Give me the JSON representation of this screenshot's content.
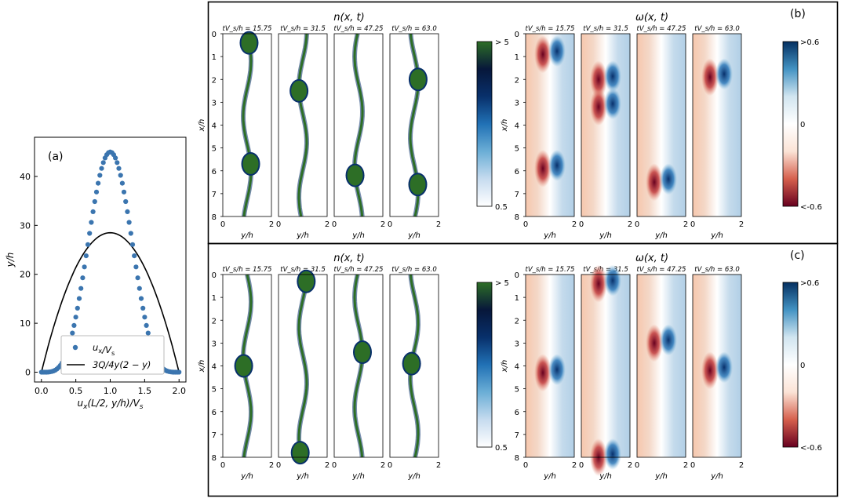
{
  "chart_data": [
    {
      "id": "a",
      "type": "scatter",
      "panel_label": "(a)",
      "xlabel": "u_x(L/2, y/h)/V_s",
      "ylabel": "y/h",
      "xlim": [
        -0.1,
        2.1
      ],
      "ylim": [
        -2,
        48
      ],
      "xticks": [
        "0.0",
        "0.5",
        "1.0",
        "1.5",
        "2.0"
      ],
      "xtick_values": [
        0,
        0.5,
        1,
        1.5,
        2
      ],
      "yticks": [
        "0",
        "10",
        "20",
        "30",
        "40"
      ],
      "ytick_values": [
        0,
        10,
        20,
        30,
        40
      ],
      "legend": [
        "u_x/V_s",
        "3Q/4y(2 − y)"
      ],
      "legend_position": "lower-center",
      "series": [
        {
          "name": "u_x/V_s",
          "kind": "points",
          "color": "#3b75af",
          "x_start": 0,
          "x_end": 2,
          "count": 81,
          "peak": 45,
          "shape": "sin4"
        },
        {
          "name": "3Q/4y(2 − y)",
          "kind": "line",
          "color": "#000000",
          "x_start": 0,
          "x_end": 2,
          "peak": 28.5,
          "shape": "parabola"
        }
      ]
    },
    {
      "id": "b",
      "type": "heatmap",
      "panel_label": "(b)",
      "groups": [
        {
          "title": "n(x, t)",
          "field": "density",
          "colorbar_labels": [
            "> 5",
            "0.5"
          ],
          "colors": [
            "#ffffff",
            "#08306b",
            "#2d6e26"
          ],
          "frames": [
            {
              "label": "tV_s/h = 15.75",
              "blobs": [
                0.4,
                5.7
              ]
            },
            {
              "label": "tV_s/h = 31.5",
              "blobs": [
                2.5
              ]
            },
            {
              "label": "tV_s/h = 47.25",
              "blobs": [
                6.2
              ]
            },
            {
              "label": "tV_s/h = 63.0",
              "blobs": [
                2.0,
                6.6
              ]
            }
          ]
        },
        {
          "title": "ω(x, t)",
          "field": "vorticity",
          "colorbar_labels": [
            ">0.6",
            "0",
            "<-0.6"
          ],
          "colors": [
            "#67001f",
            "#ffffff",
            "#053061"
          ],
          "frames": [
            {
              "label": "tV_s/h = 15.75",
              "blobs": [
                0.9,
                5.9
              ]
            },
            {
              "label": "tV_s/h = 31.5",
              "blobs": [
                2.0,
                3.2
              ]
            },
            {
              "label": "tV_s/h = 47.25",
              "blobs": [
                6.5
              ]
            },
            {
              "label": "tV_s/h = 63.0",
              "blobs": [
                1.9
              ]
            }
          ]
        }
      ],
      "xlabel": "y/h",
      "ylabel": "x/h",
      "xticks": [
        "0",
        "2"
      ],
      "yticks": [
        "0",
        "1",
        "2",
        "3",
        "4",
        "5",
        "6",
        "7",
        "8"
      ]
    },
    {
      "id": "c",
      "type": "heatmap",
      "panel_label": "(c)",
      "groups": [
        {
          "title": "n(x, t)",
          "field": "density",
          "colorbar_labels": [
            "> 5",
            "0.5"
          ],
          "colors": [
            "#ffffff",
            "#08306b",
            "#2d6e26"
          ],
          "frames": [
            {
              "label": "tV_s/h = 15.75",
              "blobs": [
                4.0
              ]
            },
            {
              "label": "tV_s/h = 31.5",
              "blobs": [
                0.3,
                7.8
              ]
            },
            {
              "label": "tV_s/h = 47.25",
              "blobs": [
                3.4
              ]
            },
            {
              "label": "tV_s/h = 63.0",
              "blobs": [
                3.9
              ]
            }
          ]
        },
        {
          "title": "ω(x, t)",
          "field": "vorticity",
          "colorbar_labels": [
            ">0.6",
            "0",
            "<-0.6"
          ],
          "colors": [
            "#67001f",
            "#ffffff",
            "#053061"
          ],
          "frames": [
            {
              "label": "tV_s/h = 15.75",
              "blobs": [
                4.3
              ]
            },
            {
              "label": "tV_s/h = 31.5",
              "blobs": [
                0.4,
                8.0
              ]
            },
            {
              "label": "tV_s/h = 47.25",
              "blobs": [
                3.0
              ]
            },
            {
              "label": "tV_s/h = 63.0",
              "blobs": [
                4.2
              ]
            }
          ]
        }
      ],
      "xlabel": "y/h",
      "ylabel": "x/h",
      "xticks": [
        "0",
        "2"
      ],
      "yticks": [
        "0",
        "1",
        "2",
        "3",
        "4",
        "5",
        "6",
        "7",
        "8"
      ]
    }
  ]
}
